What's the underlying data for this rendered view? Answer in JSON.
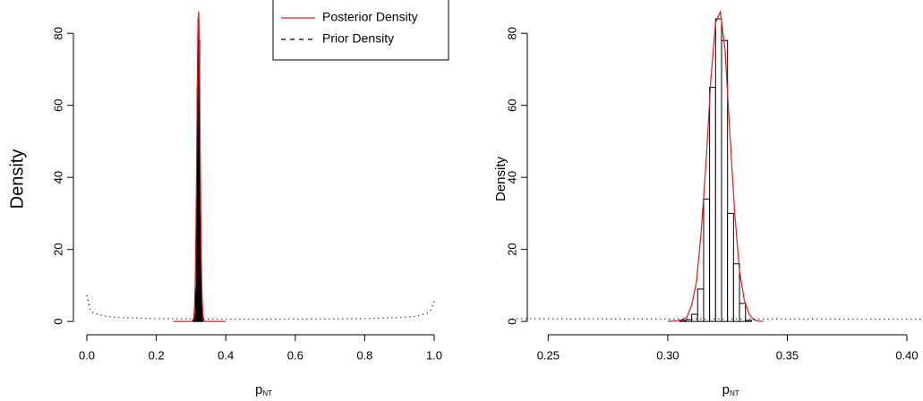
{
  "chart_data": [
    {
      "type": "histogram",
      "xlabel": "p",
      "xlabel_subscript": "NT",
      "ylabel": "Density",
      "bins": [
        0.305,
        0.3075,
        0.31,
        0.3125,
        0.315,
        0.3175,
        0.32,
        0.3225,
        0.325,
        0.3275,
        0.33,
        0.3325,
        0.335
      ],
      "counts": [
        0.3,
        0.5,
        2,
        9,
        34,
        65,
        84,
        78,
        30,
        16,
        5,
        0.3
      ],
      "xlim": [
        -0.04,
        1.04
      ],
      "ylim": [
        -3.2,
        89
      ],
      "xticks": [
        {
          "value": 0,
          "label": "0.0"
        },
        0.2,
        0.4,
        0.6,
        0.8,
        {
          "value": 1,
          "label": "1.0"
        }
      ],
      "yticks": [
        0,
        20,
        40,
        60,
        80
      ],
      "legend": "top-right",
      "series": [
        {
          "name": "Posterior Density",
          "color": "#d62020",
          "linestyle": "solid",
          "x": [
            0.25,
            0.3,
            0.302,
            0.304,
            0.306,
            0.308,
            0.31,
            0.312,
            0.314,
            0.316,
            0.318,
            0.32,
            0.322,
            0.324,
            0.326,
            0.328,
            0.33,
            0.332,
            0.334,
            0.336,
            0.338,
            0.34,
            0.4
          ],
          "values": [
            0,
            0,
            0.1,
            0.2,
            0.5,
            1.2,
            4.5,
            11,
            25,
            44,
            67,
            83,
            86,
            75,
            52,
            30,
            14,
            6,
            2,
            0.4,
            0.1,
            0,
            0
          ]
        },
        {
          "name": "Prior Density",
          "color": "#000000",
          "linestyle": "dotted",
          "x": [
            0,
            0.01,
            0.02,
            0.05,
            0.1,
            0.2,
            0.3,
            0.4,
            0.5,
            0.6,
            0.7,
            0.8,
            0.9,
            0.95,
            0.98,
            0.99,
            1
          ],
          "values": [
            7.2,
            3.2,
            2.3,
            1.5,
            1.06,
            0.8,
            0.69,
            0.65,
            0.64,
            0.65,
            0.69,
            0.8,
            1.06,
            1.5,
            2.3,
            3.2,
            5.6
          ]
        }
      ]
    },
    {
      "type": "histogram",
      "xlabel": "p",
      "xlabel_subscript": "NT",
      "ylabel": "Density",
      "bins": [
        0.305,
        0.3075,
        0.31,
        0.3125,
        0.315,
        0.3175,
        0.32,
        0.3225,
        0.325,
        0.3275,
        0.33,
        0.3325,
        0.335
      ],
      "counts": [
        0.3,
        0.5,
        2,
        9,
        34,
        65,
        84,
        78,
        30,
        16,
        5,
        0.3
      ],
      "xlim": [
        0.235,
        0.406
      ],
      "ylim": [
        -3.2,
        89
      ],
      "xticks": [
        0.25,
        {
          "value": 0.3,
          "label": "0.30"
        },
        0.35,
        {
          "value": 0.4,
          "label": "0.40"
        }
      ],
      "yticks": [
        0,
        20,
        40,
        60,
        80
      ],
      "series": [
        {
          "color": "#d62020",
          "linestyle": "solid",
          "x": [
            0.3,
            0.302,
            0.304,
            0.306,
            0.308,
            0.31,
            0.312,
            0.314,
            0.316,
            0.318,
            0.32,
            0.322,
            0.324,
            0.326,
            0.328,
            0.33,
            0.332,
            0.334,
            0.336,
            0.338,
            0.34
          ],
          "values": [
            0,
            0.1,
            0.2,
            0.5,
            1.2,
            4.5,
            11,
            25,
            44,
            67,
            83,
            86,
            75,
            52,
            30,
            14,
            6,
            2,
            0.4,
            0.1,
            0
          ]
        },
        {
          "color": "#000000",
          "linestyle": "dotted",
          "x": [
            0.235,
            0.25,
            0.3,
            0.35,
            0.406
          ],
          "values": [
            0.75,
            0.73,
            0.69,
            0.67,
            0.65
          ]
        }
      ]
    }
  ]
}
